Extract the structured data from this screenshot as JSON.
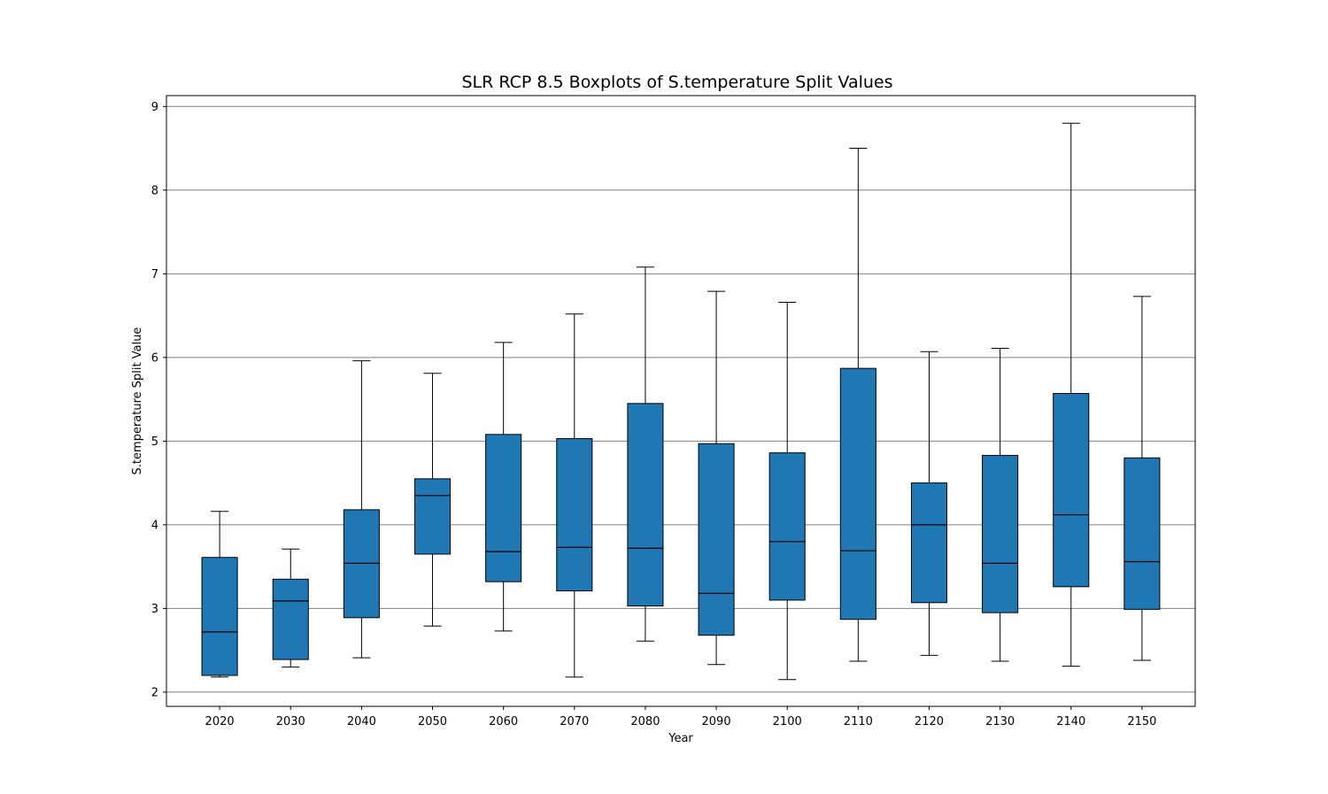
{
  "chart_data": {
    "type": "boxplot",
    "title": "SLR RCP 8.5 Boxplots of S.temperature Split Values",
    "xlabel": "Year",
    "ylabel": "S.temperature Split Value",
    "categories": [
      "2020",
      "2030",
      "2040",
      "2050",
      "2060",
      "2070",
      "2080",
      "2090",
      "2100",
      "2110",
      "2120",
      "2130",
      "2140",
      "2150"
    ],
    "boxes": [
      {
        "whisker_low": 2.18,
        "q1": 2.2,
        "median": 2.72,
        "q3": 3.61,
        "whisker_high": 4.16
      },
      {
        "whisker_low": 2.3,
        "q1": 2.39,
        "median": 3.09,
        "q3": 3.35,
        "whisker_high": 3.71
      },
      {
        "whisker_low": 2.41,
        "q1": 2.89,
        "median": 3.54,
        "q3": 4.18,
        "whisker_high": 5.96
      },
      {
        "whisker_low": 2.79,
        "q1": 3.65,
        "median": 4.35,
        "q3": 4.55,
        "whisker_high": 5.81
      },
      {
        "whisker_low": 2.73,
        "q1": 3.32,
        "median": 3.68,
        "q3": 5.08,
        "whisker_high": 6.18
      },
      {
        "whisker_low": 2.18,
        "q1": 3.21,
        "median": 3.73,
        "q3": 5.03,
        "whisker_high": 6.52
      },
      {
        "whisker_low": 2.61,
        "q1": 3.03,
        "median": 3.72,
        "q3": 5.45,
        "whisker_high": 7.08
      },
      {
        "whisker_low": 2.33,
        "q1": 2.68,
        "median": 3.18,
        "q3": 4.97,
        "whisker_high": 6.79
      },
      {
        "whisker_low": 2.15,
        "q1": 3.1,
        "median": 3.8,
        "q3": 4.86,
        "whisker_high": 6.66
      },
      {
        "whisker_low": 2.37,
        "q1": 2.87,
        "median": 3.69,
        "q3": 5.87,
        "whisker_high": 8.5
      },
      {
        "whisker_low": 2.44,
        "q1": 3.07,
        "median": 4.0,
        "q3": 4.5,
        "whisker_high": 6.07
      },
      {
        "whisker_low": 2.37,
        "q1": 2.95,
        "median": 3.54,
        "q3": 4.83,
        "whisker_high": 6.11
      },
      {
        "whisker_low": 2.31,
        "q1": 3.26,
        "median": 4.12,
        "q3": 5.57,
        "whisker_high": 8.8
      },
      {
        "whisker_low": 2.38,
        "q1": 2.99,
        "median": 3.56,
        "q3": 4.8,
        "whisker_high": 6.73
      }
    ],
    "yticks": [
      2,
      3,
      4,
      5,
      6,
      7,
      8,
      9
    ],
    "ylim": [
      1.83,
      9.13
    ],
    "grid": "horizontal",
    "box_color": "#1f77b4",
    "line_color": "#000000",
    "grid_color": "#808080"
  }
}
